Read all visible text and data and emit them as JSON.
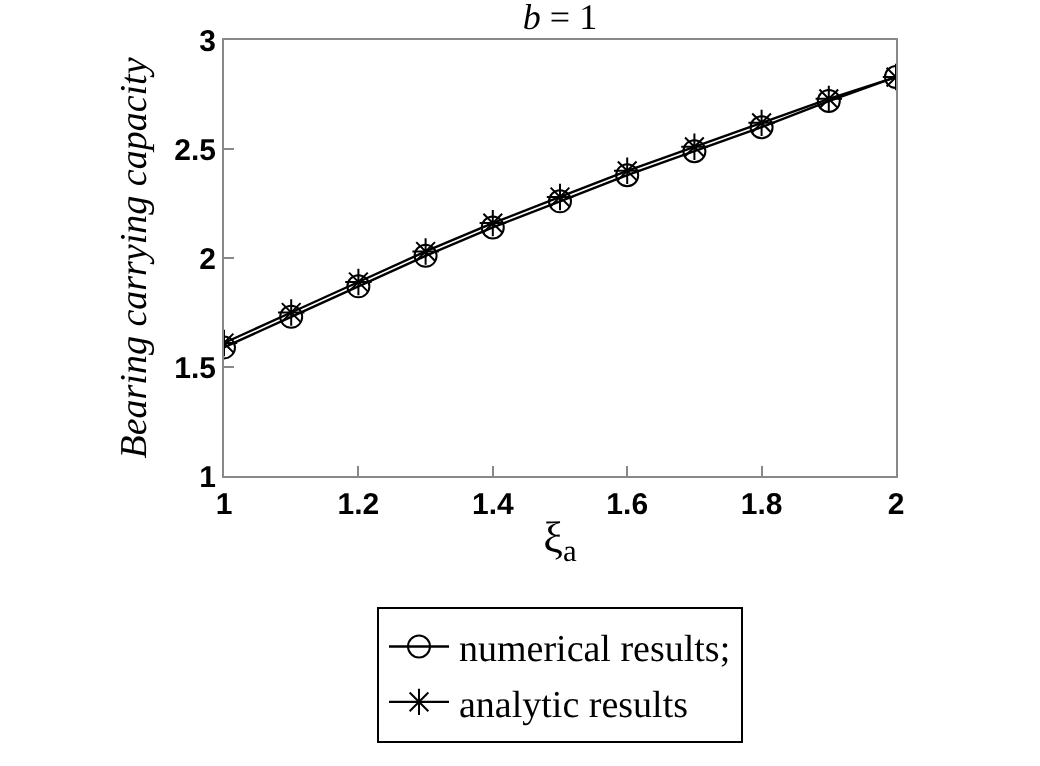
{
  "chart_data": {
    "type": "line",
    "title": "b = 1",
    "xlabel": "ξ$_{a}$",
    "ylabel": "Bearing carrying capacity",
    "x": [
      1,
      1.1,
      1.2,
      1.3,
      1.4,
      1.5,
      1.6,
      1.7,
      1.8,
      1.9,
      2
    ],
    "series": [
      {
        "name": "numerical results;",
        "color": "#000000",
        "marker": "circle",
        "values": [
          1.59,
          1.73,
          1.87,
          2.01,
          2.14,
          2.26,
          2.38,
          2.49,
          2.6,
          2.72,
          2.83
        ]
      },
      {
        "name": "analytic results",
        "color": "#000000",
        "marker": "cross",
        "values": [
          1.61,
          1.75,
          1.89,
          2.03,
          2.16,
          2.28,
          2.4,
          2.51,
          2.62,
          2.73,
          2.83
        ]
      }
    ],
    "xlim": [
      1,
      2
    ],
    "xticks": [
      1,
      1.2,
      1.4,
      1.6,
      1.8,
      2
    ],
    "ylim": [
      1,
      3
    ],
    "yticks": [
      1,
      1.5,
      2,
      2.5,
      3
    ],
    "grid": false,
    "legend": "bottom",
    "line_style": "solid"
  }
}
